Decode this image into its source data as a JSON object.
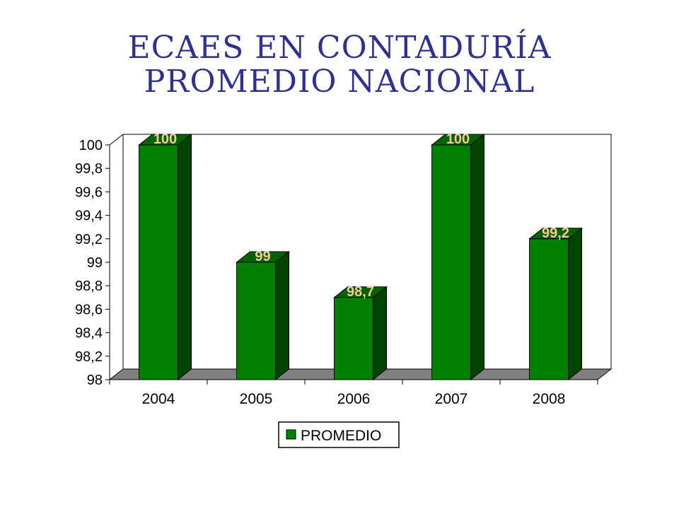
{
  "slide": {
    "title": "ECAES EN CONTADURÍA PROMEDIO NACIONAL"
  },
  "chart_data": {
    "type": "bar",
    "title": "",
    "xlabel": "",
    "ylabel": "",
    "categories": [
      "2004",
      "2005",
      "2006",
      "2007",
      "2008"
    ],
    "series": [
      {
        "name": "PROMEDIO",
        "values": [
          100,
          99,
          98.7,
          100,
          99.2
        ],
        "color": "#008000",
        "side_color": "#004400",
        "top_color": "#006400"
      }
    ],
    "data_labels": [
      "100",
      "99",
      "98,7",
      "100",
      "99,2"
    ],
    "ylim": [
      98,
      100
    ],
    "y_ticks": [
      "98",
      "98,2",
      "98,4",
      "98,6",
      "98,8",
      "99",
      "99,2",
      "99,4",
      "99,6",
      "99,8",
      "100"
    ],
    "floor_color": "#808080",
    "data_label_color": "#f5c99a",
    "grid": false,
    "legend_position": "bottom"
  }
}
